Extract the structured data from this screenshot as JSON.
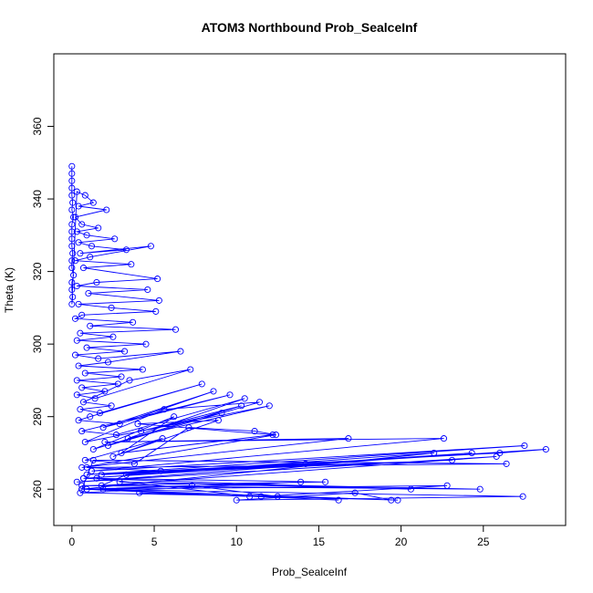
{
  "chart_data": {
    "type": "scatter",
    "title": "ATOM3 Northbound Prob_SealceInf",
    "xlabel": "Prob_SealceInf",
    "ylabel": "Theta (K)",
    "xlim": [
      -1.1,
      30.0
    ],
    "ylim": [
      250.0,
      380.0
    ],
    "x_ticks": [
      0,
      5,
      10,
      15,
      20,
      25
    ],
    "x_tick_labels": [
      "0",
      "5",
      "10",
      "15",
      "20",
      "25"
    ],
    "y_ticks": [
      260,
      280,
      300,
      320,
      340,
      360
    ],
    "y_tick_labels": [
      "260",
      "280",
      "300",
      "320",
      "340",
      "360"
    ],
    "grid": false,
    "legend": "none",
    "markers": "open-circle",
    "connected": true,
    "colors": {
      "series": "#0000ff",
      "axis": "#000000",
      "background": "#ffffff"
    },
    "series": [
      {
        "x": [
          0.0,
          0.0,
          0.0,
          0.0,
          0.0,
          0.05,
          0.0,
          0.1,
          0.0,
          0.0,
          0.0,
          0.0,
          0.05,
          0.0,
          0.0,
          0.1,
          0.0,
          0.0,
          0.05,
          0.0,
          0.3,
          0.8,
          1.3,
          0.4,
          2.1,
          0.2,
          0.6,
          1.6,
          0.3,
          0.9,
          2.6,
          0.4,
          1.2,
          3.3,
          0.5,
          4.8,
          1.1,
          0.2,
          3.6,
          0.7,
          5.2,
          1.5,
          0.3,
          4.6,
          1.0,
          5.3,
          0.4,
          2.4,
          5.1,
          0.6,
          0.2,
          3.7,
          1.1,
          6.3,
          0.5,
          2.5,
          0.3,
          4.5,
          0.9,
          3.2,
          0.2,
          1.6,
          6.6,
          2.2,
          0.4,
          4.3,
          0.8,
          3.0,
          0.3,
          2.8,
          0.6,
          2.0,
          0.3,
          1.4,
          7.2,
          3.5,
          0.7,
          2.4,
          0.5,
          1.7,
          7.9,
          1.1,
          0.4,
          2.9,
          8.6,
          1.9,
          9.6,
          0.6,
          2.7,
          10.5,
          3.4,
          12.0,
          0.8,
          5.6,
          11.4,
          2.2,
          9.1,
          4.2,
          10.3,
          1.3,
          6.2,
          3.0,
          12.2,
          4.0,
          8.9,
          2.5,
          5.5,
          0.8,
          3.8,
          7.1,
          11.1,
          12.4,
          0.6,
          16.8,
          2.0,
          22.6,
          1.2,
          27.5,
          0.9,
          26.0,
          28.8,
          0.7,
          24.3,
          0.3,
          25.8,
          1.8,
          3.3,
          22.0,
          0.6,
          1.3,
          26.4,
          0.9,
          5.4,
          23.1,
          1.8,
          14.2,
          0.7,
          20.6,
          2.9,
          24.8,
          0.6,
          15.4,
          1.5,
          10.8,
          4.1,
          19.8,
          0.9,
          7.3,
          12.5,
          0.5,
          13.9,
          1.9,
          22.8,
          11.5,
          16.2,
          0.6,
          27.4,
          10.0,
          17.2,
          19.4
        ],
        "y": [
          349,
          347,
          345,
          343,
          341,
          339,
          337,
          335,
          333,
          331,
          329,
          327,
          325,
          323,
          321,
          319,
          317,
          315,
          313,
          311,
          342,
          341,
          339,
          338,
          337,
          335,
          333,
          332,
          331,
          330,
          329,
          328,
          327,
          326,
          325,
          327,
          324,
          323,
          322,
          321,
          318,
          317,
          316,
          315,
          314,
          312,
          311,
          310,
          309,
          308,
          307,
          306,
          305,
          304,
          303,
          302,
          301,
          300,
          299,
          298,
          297,
          296,
          298,
          295,
          294,
          293,
          292,
          291,
          290,
          289,
          288,
          287,
          286,
          285,
          293,
          290,
          284,
          283,
          282,
          281,
          289,
          280,
          279,
          278,
          287,
          277,
          286,
          276,
          275,
          285,
          274,
          283,
          273,
          282,
          284,
          272,
          281,
          276,
          283,
          271,
          280,
          270,
          275,
          278,
          279,
          269,
          274,
          268,
          267,
          277,
          276,
          275,
          266,
          274,
          273,
          274,
          265,
          272,
          264,
          270,
          271,
          263,
          270,
          262,
          269,
          261,
          264,
          270,
          260,
          268,
          267,
          266,
          265,
          268,
          264,
          267,
          263,
          260,
          262,
          260,
          261,
          262,
          263,
          258,
          259,
          257,
          260,
          261,
          258,
          259,
          262,
          260,
          261,
          258,
          257,
          260,
          258,
          257,
          259,
          257
        ]
      }
    ]
  }
}
